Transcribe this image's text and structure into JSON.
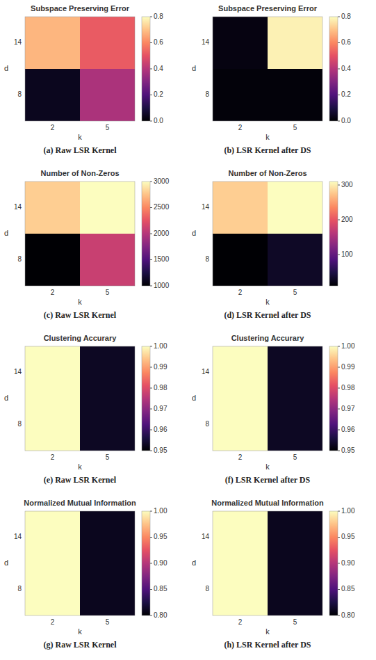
{
  "chart_data": [
    {
      "type": "heatmap",
      "title": "Subspace Preserving Error",
      "caption": "(a) Raw LSR Kernel",
      "xlabel": "k",
      "ylabel": "d",
      "x_categories": [
        "2",
        "5"
      ],
      "y_categories": [
        "14",
        "8"
      ],
      "values": [
        [
          0.68,
          0.52
        ],
        [
          0.04,
          0.38
        ]
      ],
      "color_range": [
        0.0,
        0.8
      ],
      "color_ticks": [
        {
          "value": 0.0,
          "label": "0.0"
        },
        0.2,
        0.4,
        0.6,
        0.8
      ]
    },
    {
      "type": "heatmap",
      "title": "Subspace Preserving Error",
      "caption": "(b) LSR Kernel after DS",
      "xlabel": "k",
      "ylabel": "d",
      "x_categories": [
        "2",
        "5"
      ],
      "y_categories": [
        "14",
        "8"
      ],
      "values": [
        [
          0.02,
          0.78
        ],
        [
          0.01,
          0.01
        ]
      ],
      "color_range": [
        0.0,
        0.8
      ],
      "color_ticks": [
        {
          "value": 0.0,
          "label": "0.0"
        },
        0.2,
        0.4,
        0.6,
        0.8
      ]
    },
    {
      "type": "heatmap",
      "title": "Number of Non-Zeros",
      "caption": "(c) Raw LSR Kernel",
      "xlabel": "k",
      "ylabel": "d",
      "x_categories": [
        "2",
        "5"
      ],
      "y_categories": [
        "14",
        "8"
      ],
      "values": [
        [
          2800,
          3000
        ],
        [
          1000,
          2100
        ]
      ],
      "color_range": [
        1000,
        3000
      ],
      "color_ticks": [
        1000,
        1500,
        2000,
        2500,
        3000
      ]
    },
    {
      "type": "heatmap",
      "title": "Number of Non-Zeros",
      "caption": "(d) LSR Kernel after DS",
      "xlabel": "k",
      "ylabel": "d",
      "x_categories": [
        "2",
        "5"
      ],
      "y_categories": [
        "14",
        "8"
      ],
      "values": [
        [
          280,
          310
        ],
        [
          10,
          30
        ]
      ],
      "color_range": [
        10,
        310
      ],
      "color_ticks": [
        100,
        200,
        300
      ]
    },
    {
      "type": "heatmap",
      "title": "Clustering Accurary",
      "caption": "(e) Raw LSR Kernel",
      "xlabel": "k",
      "ylabel": "d",
      "x_categories": [
        "2",
        "5"
      ],
      "y_categories": [
        "14",
        "8"
      ],
      "values": [
        [
          1.0,
          0.953
        ],
        [
          1.0,
          0.953
        ]
      ],
      "color_range": [
        0.95,
        1.0
      ],
      "color_ticks": [
        0.95,
        0.96,
        0.97,
        0.98,
        0.99,
        {
          "value": 1.0,
          "label": "1.00"
        }
      ]
    },
    {
      "type": "heatmap",
      "title": "Clustering Accurary",
      "caption": "(f) LSR Kernel after DS",
      "xlabel": "k",
      "ylabel": "d",
      "x_categories": [
        "2",
        "5"
      ],
      "y_categories": [
        "14",
        "8"
      ],
      "values": [
        [
          1.0,
          0.953
        ],
        [
          1.0,
          0.953
        ]
      ],
      "color_range": [
        0.95,
        1.0
      ],
      "color_ticks": [
        0.95,
        0.96,
        0.97,
        0.98,
        0.99,
        {
          "value": 1.0,
          "label": "1.00"
        }
      ]
    },
    {
      "type": "heatmap",
      "title": "Normalized Mutual Information",
      "caption": "(g) Raw LSR Kernel",
      "xlabel": "k",
      "ylabel": "d",
      "x_categories": [
        "2",
        "5"
      ],
      "y_categories": [
        "14",
        "8"
      ],
      "values": [
        [
          1.0,
          0.81
        ],
        [
          1.0,
          0.81
        ]
      ],
      "color_range": [
        0.8,
        1.0
      ],
      "color_ticks": [
        {
          "value": 0.8,
          "label": "0.80"
        },
        0.85,
        {
          "value": 0.9,
          "label": "0.90"
        },
        0.95,
        {
          "value": 1.0,
          "label": "1.00"
        }
      ]
    },
    {
      "type": "heatmap",
      "title": "Normalized Mutual Information",
      "caption": "(h) LSR Kernel after DS",
      "xlabel": "k",
      "ylabel": "d",
      "x_categories": [
        "2",
        "5"
      ],
      "y_categories": [
        "14",
        "8"
      ],
      "values": [
        [
          1.0,
          0.81
        ],
        [
          1.0,
          0.81
        ]
      ],
      "color_range": [
        0.8,
        1.0
      ],
      "color_ticks": [
        {
          "value": 0.8,
          "label": "0.80"
        },
        0.85,
        {
          "value": 0.9,
          "label": "0.90"
        },
        0.95,
        {
          "value": 1.0,
          "label": "1.00"
        }
      ]
    }
  ]
}
